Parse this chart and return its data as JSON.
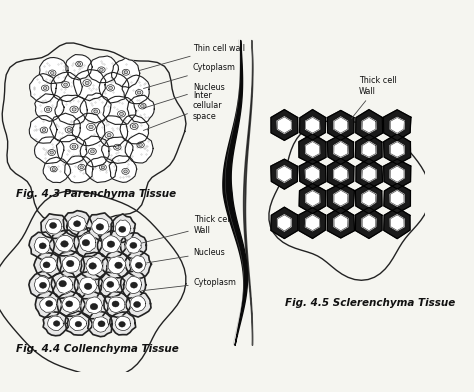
{
  "bg_color": "#f5f5f0",
  "fig43_caption": "Fig. 4.3 Parenchyma Tissue",
  "fig44_caption": "Fig. 4.4 Collenchyma Tissue",
  "fig45_caption": "Fig. 4.5 Sclerenchyma Tissue",
  "fig43_labels": [
    "Thin cell wall",
    "Cytoplasm",
    "Nucleus",
    "Inter\ncellular\nspace"
  ],
  "fig44_labels": [
    "Thick cell\nWall",
    "Nucleus",
    "Cytoplasm"
  ],
  "fig45_labels": [
    "Thick cell\nWall"
  ],
  "text_color": "#111111",
  "cell_edge_color": "#222222",
  "fiber_color": "#111111"
}
